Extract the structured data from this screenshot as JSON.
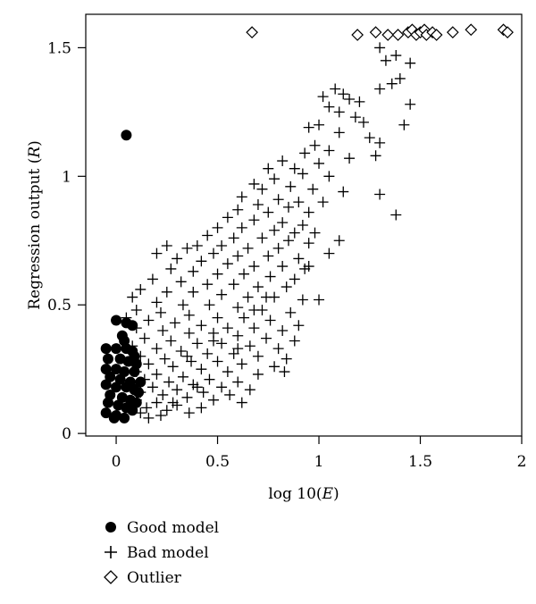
{
  "chart_data": {
    "type": "scatter",
    "xlabel_prefix": "log 10(",
    "xlabel_var": "E",
    "xlabel_suffix": ")",
    "ylabel_prefix": "Regression output (",
    "ylabel_var": "R",
    "ylabel_suffix": ")",
    "xlim": [
      -0.15,
      2.0
    ],
    "ylim": [
      -0.01,
      1.63
    ],
    "xticks": [
      0,
      0.5,
      1,
      1.5,
      2
    ],
    "xtick_labels": [
      "0",
      "0.5",
      "1",
      "1.5",
      "2"
    ],
    "yticks": [
      0,
      0.5,
      1,
      1.5
    ],
    "ytick_labels": [
      "0",
      "0.5",
      "1",
      "1.5"
    ],
    "grid": false,
    "legend_position": "below",
    "series": [
      {
        "name": "Good model",
        "marker": "filled-circle",
        "points": [
          [
            0.05,
            1.16
          ],
          [
            0.0,
            0.44
          ],
          [
            0.05,
            0.43
          ],
          [
            0.08,
            0.42
          ],
          [
            0.03,
            0.38
          ],
          [
            -0.05,
            0.33
          ],
          [
            0.0,
            0.33
          ],
          [
            0.05,
            0.33
          ],
          [
            0.08,
            0.32
          ],
          [
            -0.04,
            0.29
          ],
          [
            0.02,
            0.29
          ],
          [
            0.06,
            0.28
          ],
          [
            -0.05,
            0.25
          ],
          [
            0.0,
            0.25
          ],
          [
            0.04,
            0.24
          ],
          [
            0.09,
            0.24
          ],
          [
            -0.03,
            0.22
          ],
          [
            0.02,
            0.21
          ],
          [
            0.07,
            0.2
          ],
          [
            -0.05,
            0.19
          ],
          [
            0.0,
            0.18
          ],
          [
            0.05,
            0.18
          ],
          [
            0.09,
            0.17
          ],
          [
            -0.03,
            0.15
          ],
          [
            0.03,
            0.14
          ],
          [
            0.07,
            0.13
          ],
          [
            -0.04,
            0.12
          ],
          [
            0.01,
            0.11
          ],
          [
            0.05,
            0.1
          ],
          [
            -0.05,
            0.08
          ],
          [
            0.0,
            0.07
          ],
          [
            0.04,
            0.06
          ],
          [
            0.08,
            0.09
          ],
          [
            0.1,
            0.12
          ],
          [
            0.11,
            0.16
          ],
          [
            0.12,
            0.2
          ],
          [
            0.1,
            0.27
          ],
          [
            0.09,
            0.3
          ],
          [
            0.04,
            0.36
          ],
          [
            -0.01,
            0.06
          ]
        ]
      },
      {
        "name": "Bad model",
        "marker": "plus",
        "points": [
          [
            1.3,
            1.5
          ],
          [
            1.38,
            1.47
          ],
          [
            1.33,
            1.45
          ],
          [
            1.45,
            1.44
          ],
          [
            1.4,
            1.38
          ],
          [
            1.36,
            1.36
          ],
          [
            1.3,
            1.34
          ],
          [
            1.08,
            1.34
          ],
          [
            1.12,
            1.32
          ],
          [
            1.02,
            1.31
          ],
          [
            1.15,
            1.3
          ],
          [
            1.2,
            1.29
          ],
          [
            1.45,
            1.28
          ],
          [
            1.05,
            1.27
          ],
          [
            1.1,
            1.25
          ],
          [
            1.18,
            1.23
          ],
          [
            1.22,
            1.21
          ],
          [
            1.42,
            1.2
          ],
          [
            1.0,
            1.2
          ],
          [
            0.95,
            1.19
          ],
          [
            1.1,
            1.17
          ],
          [
            1.25,
            1.15
          ],
          [
            1.3,
            1.13
          ],
          [
            0.98,
            1.12
          ],
          [
            1.05,
            1.1
          ],
          [
            0.93,
            1.09
          ],
          [
            1.15,
            1.07
          ],
          [
            1.28,
            1.08
          ],
          [
            0.82,
            1.06
          ],
          [
            1.0,
            1.05
          ],
          [
            0.75,
            1.03
          ],
          [
            0.88,
            1.03
          ],
          [
            0.92,
            1.01
          ],
          [
            1.05,
            1.0
          ],
          [
            0.78,
            0.99
          ],
          [
            0.68,
            0.97
          ],
          [
            0.86,
            0.96
          ],
          [
            0.72,
            0.95
          ],
          [
            0.97,
            0.95
          ],
          [
            1.12,
            0.94
          ],
          [
            1.3,
            0.93
          ],
          [
            0.62,
            0.92
          ],
          [
            0.8,
            0.91
          ],
          [
            0.9,
            0.9
          ],
          [
            1.02,
            0.9
          ],
          [
            0.7,
            0.89
          ],
          [
            0.85,
            0.88
          ],
          [
            0.6,
            0.87
          ],
          [
            0.75,
            0.86
          ],
          [
            0.95,
            0.86
          ],
          [
            1.38,
            0.85
          ],
          [
            0.55,
            0.84
          ],
          [
            0.68,
            0.83
          ],
          [
            0.82,
            0.82
          ],
          [
            0.92,
            0.81
          ],
          [
            0.5,
            0.8
          ],
          [
            0.62,
            0.8
          ],
          [
            0.78,
            0.79
          ],
          [
            0.88,
            0.78
          ],
          [
            0.98,
            0.78
          ],
          [
            0.45,
            0.77
          ],
          [
            0.58,
            0.76
          ],
          [
            0.72,
            0.76
          ],
          [
            0.85,
            0.75
          ],
          [
            0.95,
            0.74
          ],
          [
            0.4,
            0.73
          ],
          [
            0.52,
            0.73
          ],
          [
            0.65,
            0.72
          ],
          [
            0.8,
            0.72
          ],
          [
            0.25,
            0.73
          ],
          [
            0.35,
            0.72
          ],
          [
            0.48,
            0.7
          ],
          [
            0.6,
            0.69
          ],
          [
            0.75,
            0.69
          ],
          [
            0.9,
            0.68
          ],
          [
            0.2,
            0.7
          ],
          [
            0.3,
            0.68
          ],
          [
            0.42,
            0.67
          ],
          [
            0.55,
            0.66
          ],
          [
            0.68,
            0.65
          ],
          [
            0.82,
            0.65
          ],
          [
            0.95,
            0.65
          ],
          [
            0.27,
            0.64
          ],
          [
            0.38,
            0.63
          ],
          [
            0.5,
            0.62
          ],
          [
            0.63,
            0.62
          ],
          [
            0.76,
            0.61
          ],
          [
            0.88,
            0.6
          ],
          [
            0.18,
            0.6
          ],
          [
            0.32,
            0.59
          ],
          [
            0.45,
            0.58
          ],
          [
            0.58,
            0.58
          ],
          [
            0.7,
            0.57
          ],
          [
            0.84,
            0.57
          ],
          [
            0.12,
            0.56
          ],
          [
            0.25,
            0.55
          ],
          [
            0.38,
            0.55
          ],
          [
            0.52,
            0.54
          ],
          [
            0.65,
            0.53
          ],
          [
            0.78,
            0.53
          ],
          [
            0.92,
            0.52
          ],
          [
            0.08,
            0.53
          ],
          [
            0.2,
            0.51
          ],
          [
            0.33,
            0.5
          ],
          [
            0.46,
            0.5
          ],
          [
            0.6,
            0.49
          ],
          [
            0.72,
            0.48
          ],
          [
            0.86,
            0.47
          ],
          [
            1.0,
            0.52
          ],
          [
            0.1,
            0.48
          ],
          [
            0.22,
            0.47
          ],
          [
            0.36,
            0.46
          ],
          [
            0.5,
            0.45
          ],
          [
            0.63,
            0.45
          ],
          [
            0.76,
            0.44
          ],
          [
            0.9,
            0.42
          ],
          [
            0.05,
            0.45
          ],
          [
            0.16,
            0.44
          ],
          [
            0.29,
            0.43
          ],
          [
            0.42,
            0.42
          ],
          [
            0.55,
            0.41
          ],
          [
            0.68,
            0.41
          ],
          [
            0.82,
            0.4
          ],
          [
            0.1,
            0.41
          ],
          [
            0.23,
            0.4
          ],
          [
            0.36,
            0.39
          ],
          [
            0.48,
            0.39
          ],
          [
            0.6,
            0.38
          ],
          [
            0.74,
            0.37
          ],
          [
            0.88,
            0.36
          ],
          [
            0.14,
            0.37
          ],
          [
            0.27,
            0.36
          ],
          [
            0.4,
            0.35
          ],
          [
            0.52,
            0.35
          ],
          [
            0.66,
            0.34
          ],
          [
            0.8,
            0.33
          ],
          [
            0.08,
            0.34
          ],
          [
            0.2,
            0.33
          ],
          [
            0.32,
            0.32
          ],
          [
            0.45,
            0.31
          ],
          [
            0.58,
            0.31
          ],
          [
            0.7,
            0.3
          ],
          [
            0.84,
            0.29
          ],
          [
            0.12,
            0.3
          ],
          [
            0.24,
            0.29
          ],
          [
            0.37,
            0.28
          ],
          [
            0.5,
            0.28
          ],
          [
            0.62,
            0.27
          ],
          [
            0.78,
            0.26
          ],
          [
            0.16,
            0.27
          ],
          [
            0.28,
            0.26
          ],
          [
            0.42,
            0.25
          ],
          [
            0.55,
            0.24
          ],
          [
            0.7,
            0.23
          ],
          [
            0.83,
            0.24
          ],
          [
            0.1,
            0.24
          ],
          [
            0.2,
            0.23
          ],
          [
            0.33,
            0.22
          ],
          [
            0.46,
            0.21
          ],
          [
            0.6,
            0.2
          ],
          [
            0.14,
            0.21
          ],
          [
            0.26,
            0.2
          ],
          [
            0.38,
            0.19
          ],
          [
            0.52,
            0.18
          ],
          [
            0.66,
            0.17
          ],
          [
            0.08,
            0.19
          ],
          [
            0.18,
            0.18
          ],
          [
            0.3,
            0.17
          ],
          [
            0.43,
            0.16
          ],
          [
            0.56,
            0.15
          ],
          [
            0.12,
            0.16
          ],
          [
            0.23,
            0.15
          ],
          [
            0.35,
            0.14
          ],
          [
            0.48,
            0.13
          ],
          [
            0.62,
            0.12
          ],
          [
            0.1,
            0.13
          ],
          [
            0.2,
            0.12
          ],
          [
            0.3,
            0.11
          ],
          [
            0.42,
            0.1
          ],
          [
            0.15,
            0.1
          ],
          [
            0.25,
            0.09
          ],
          [
            0.36,
            0.08
          ],
          [
            0.12,
            0.08
          ],
          [
            0.22,
            0.07
          ],
          [
            0.16,
            0.06
          ],
          [
            0.28,
            0.12
          ],
          [
            0.4,
            0.18
          ],
          [
            0.6,
            0.33
          ],
          [
            0.74,
            0.53
          ],
          [
            0.93,
            0.64
          ],
          [
            1.05,
            0.7
          ],
          [
            1.1,
            0.75
          ],
          [
            0.68,
            0.48
          ],
          [
            0.48,
            0.36
          ],
          [
            0.35,
            0.3
          ]
        ]
      },
      {
        "name": "Outlier",
        "marker": "diamond",
        "points": [
          [
            0.67,
            1.56
          ],
          [
            1.19,
            1.55
          ],
          [
            1.28,
            1.56
          ],
          [
            1.34,
            1.55
          ],
          [
            1.39,
            1.55
          ],
          [
            1.44,
            1.56
          ],
          [
            1.46,
            1.57
          ],
          [
            1.48,
            1.55
          ],
          [
            1.5,
            1.56
          ],
          [
            1.52,
            1.57
          ],
          [
            1.53,
            1.55
          ],
          [
            1.56,
            1.56
          ],
          [
            1.58,
            1.55
          ],
          [
            1.66,
            1.56
          ],
          [
            1.75,
            1.57
          ],
          [
            1.91,
            1.57
          ],
          [
            1.93,
            1.56
          ]
        ]
      }
    ]
  }
}
